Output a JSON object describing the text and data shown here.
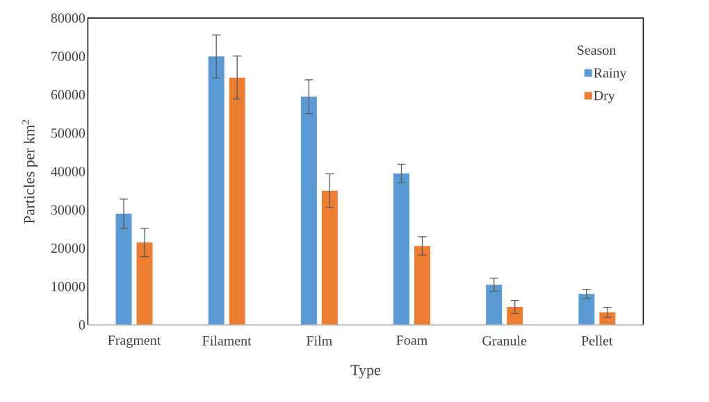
{
  "chart_data": {
    "type": "bar",
    "xlabel": "Type",
    "ylabel": "Particles per km$^{2}$",
    "legend_title": "Season",
    "legend": "top right",
    "categories": [
      "Fragment",
      "Filament",
      "Film",
      "Foam",
      "Granule",
      "Pellet"
    ],
    "series": [
      {
        "name": "Rainy",
        "color": "#5b9bd5",
        "values": [
          29000,
          70000,
          59500,
          39500,
          10500,
          8100
        ],
        "errors": [
          3800,
          5600,
          4400,
          2400,
          1700,
          1200
        ]
      },
      {
        "name": "Dry",
        "color": "#ed7d31",
        "values": [
          21500,
          64500,
          35000,
          20600,
          4700,
          3300
        ],
        "errors": [
          3700,
          5600,
          4400,
          2400,
          1700,
          1300
        ]
      }
    ],
    "ylim": [
      0,
      80000
    ],
    "yticks": [
      0,
      10000,
      20000,
      30000,
      40000,
      50000,
      60000,
      70000,
      80000
    ]
  }
}
